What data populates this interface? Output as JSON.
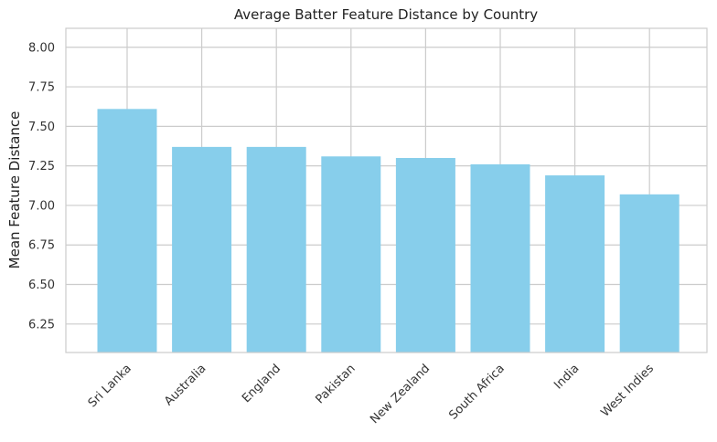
{
  "chart_data": {
    "type": "bar",
    "title": "Average Batter Feature Distance by Country",
    "xlabel": "",
    "ylabel": "Mean Feature Distance",
    "categories": [
      "Sri Lanka",
      "Australia",
      "England",
      "Pakistan",
      "New Zealand",
      "South Africa",
      "India",
      "West Indies"
    ],
    "values": [
      7.61,
      7.37,
      7.37,
      7.31,
      7.3,
      7.26,
      7.19,
      7.07
    ],
    "ylim": [
      6.07,
      8.12
    ],
    "yticks": [
      "6.25",
      "6.50",
      "6.75",
      "7.00",
      "7.25",
      "7.50",
      "7.75",
      "8.00"
    ],
    "grid": true,
    "bar_color": "#87ceeb"
  }
}
